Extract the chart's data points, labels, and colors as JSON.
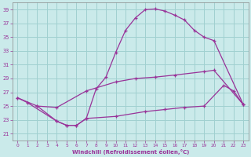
{
  "xlabel": "Windchill (Refroidissement éolien,°C)",
  "bg_color": "#caeaea",
  "grid_color": "#a0d0d0",
  "line_color": "#993399",
  "xlim": [
    -0.5,
    23.5
  ],
  "ylim": [
    20,
    40
  ],
  "yticks": [
    21,
    23,
    25,
    27,
    29,
    31,
    33,
    35,
    37,
    39
  ],
  "xticks": [
    0,
    1,
    2,
    3,
    4,
    5,
    6,
    7,
    8,
    9,
    10,
    11,
    12,
    13,
    14,
    15,
    16,
    17,
    18,
    19,
    20,
    21,
    22,
    23
  ],
  "line1_x": [
    0,
    1,
    4,
    5,
    6,
    7,
    8,
    9,
    10,
    11,
    12,
    13,
    14,
    15,
    16,
    17,
    18,
    19,
    20,
    23
  ],
  "line1_y": [
    26.2,
    25.5,
    22.8,
    22.2,
    22.2,
    23.2,
    27.5,
    29.2,
    32.8,
    36.0,
    37.8,
    39.0,
    39.1,
    38.8,
    38.2,
    37.5,
    36.0,
    35.0,
    34.5,
    25.2
  ],
  "line2_x": [
    0,
    2,
    4,
    7,
    10,
    12,
    14,
    16,
    19,
    20,
    23
  ],
  "line2_y": [
    26.2,
    25.0,
    24.8,
    27.2,
    28.5,
    29.0,
    29.2,
    29.5,
    30.0,
    30.2,
    25.2
  ],
  "line3_x": [
    2,
    4,
    5,
    6,
    7,
    10,
    13,
    15,
    17,
    19,
    21,
    22,
    23
  ],
  "line3_y": [
    25.0,
    22.8,
    22.2,
    22.2,
    23.2,
    23.5,
    24.2,
    24.5,
    24.8,
    25.0,
    28.0,
    27.2,
    25.2
  ]
}
